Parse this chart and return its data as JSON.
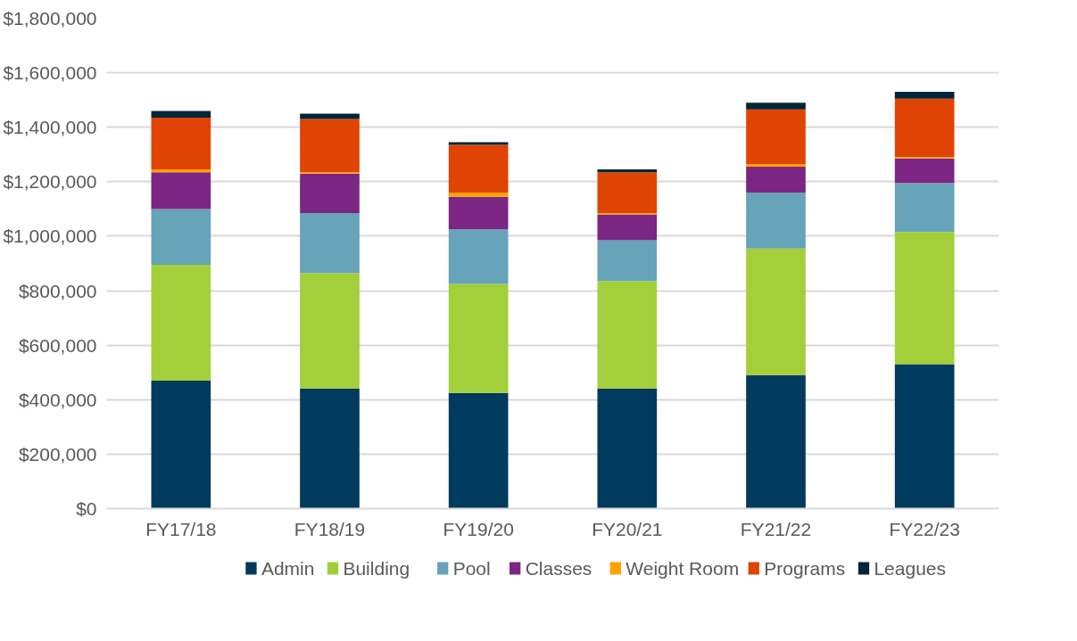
{
  "chart_data": {
    "type": "bar",
    "stacked": true,
    "categories": [
      "FY17/18",
      "FY18/19",
      "FY19/20",
      "FY20/21",
      "FY21/22",
      "FY22/23"
    ],
    "series": [
      {
        "name": "Admin",
        "color": "#003a5d",
        "values": [
          470000,
          440000,
          425000,
          440000,
          490000,
          530000
        ]
      },
      {
        "name": "Building",
        "color": "#a2cf3a",
        "values": [
          425000,
          425000,
          400000,
          395000,
          465000,
          485000
        ]
      },
      {
        "name": "Pool",
        "color": "#67a3b9",
        "values": [
          205000,
          220000,
          200000,
          150000,
          205000,
          180000
        ]
      },
      {
        "name": "Classes",
        "color": "#7b2682",
        "values": [
          135000,
          145000,
          120000,
          95000,
          95000,
          90000
        ]
      },
      {
        "name": "Weight Room",
        "color": "#ffa100",
        "values": [
          10000,
          5000,
          15000,
          5000,
          10000,
          5000
        ]
      },
      {
        "name": "Programs",
        "color": "#e04403",
        "values": [
          190000,
          195000,
          175000,
          150000,
          200000,
          215000
        ]
      },
      {
        "name": "Leagues",
        "color": "#002538",
        "values": [
          25000,
          20000,
          10000,
          10000,
          25000,
          25000
        ]
      }
    ],
    "ylim": [
      0,
      1800000
    ],
    "yticks": [
      {
        "value": 0,
        "label": "$0"
      },
      {
        "value": 200000,
        "label": "$200,000"
      },
      {
        "value": 400000,
        "label": "$400,000"
      },
      {
        "value": 600000,
        "label": "$600,000"
      },
      {
        "value": 800000,
        "label": "$800,000"
      },
      {
        "value": 1000000,
        "label": "$1,000,000"
      },
      {
        "value": 1200000,
        "label": "$1,200,000"
      },
      {
        "value": 1400000,
        "label": "$1,400,000"
      },
      {
        "value": 1600000,
        "label": "$1,600,000"
      },
      {
        "value": 1800000,
        "label": "$1,800,000"
      }
    ],
    "grid": "y",
    "legend": "bottom"
  }
}
